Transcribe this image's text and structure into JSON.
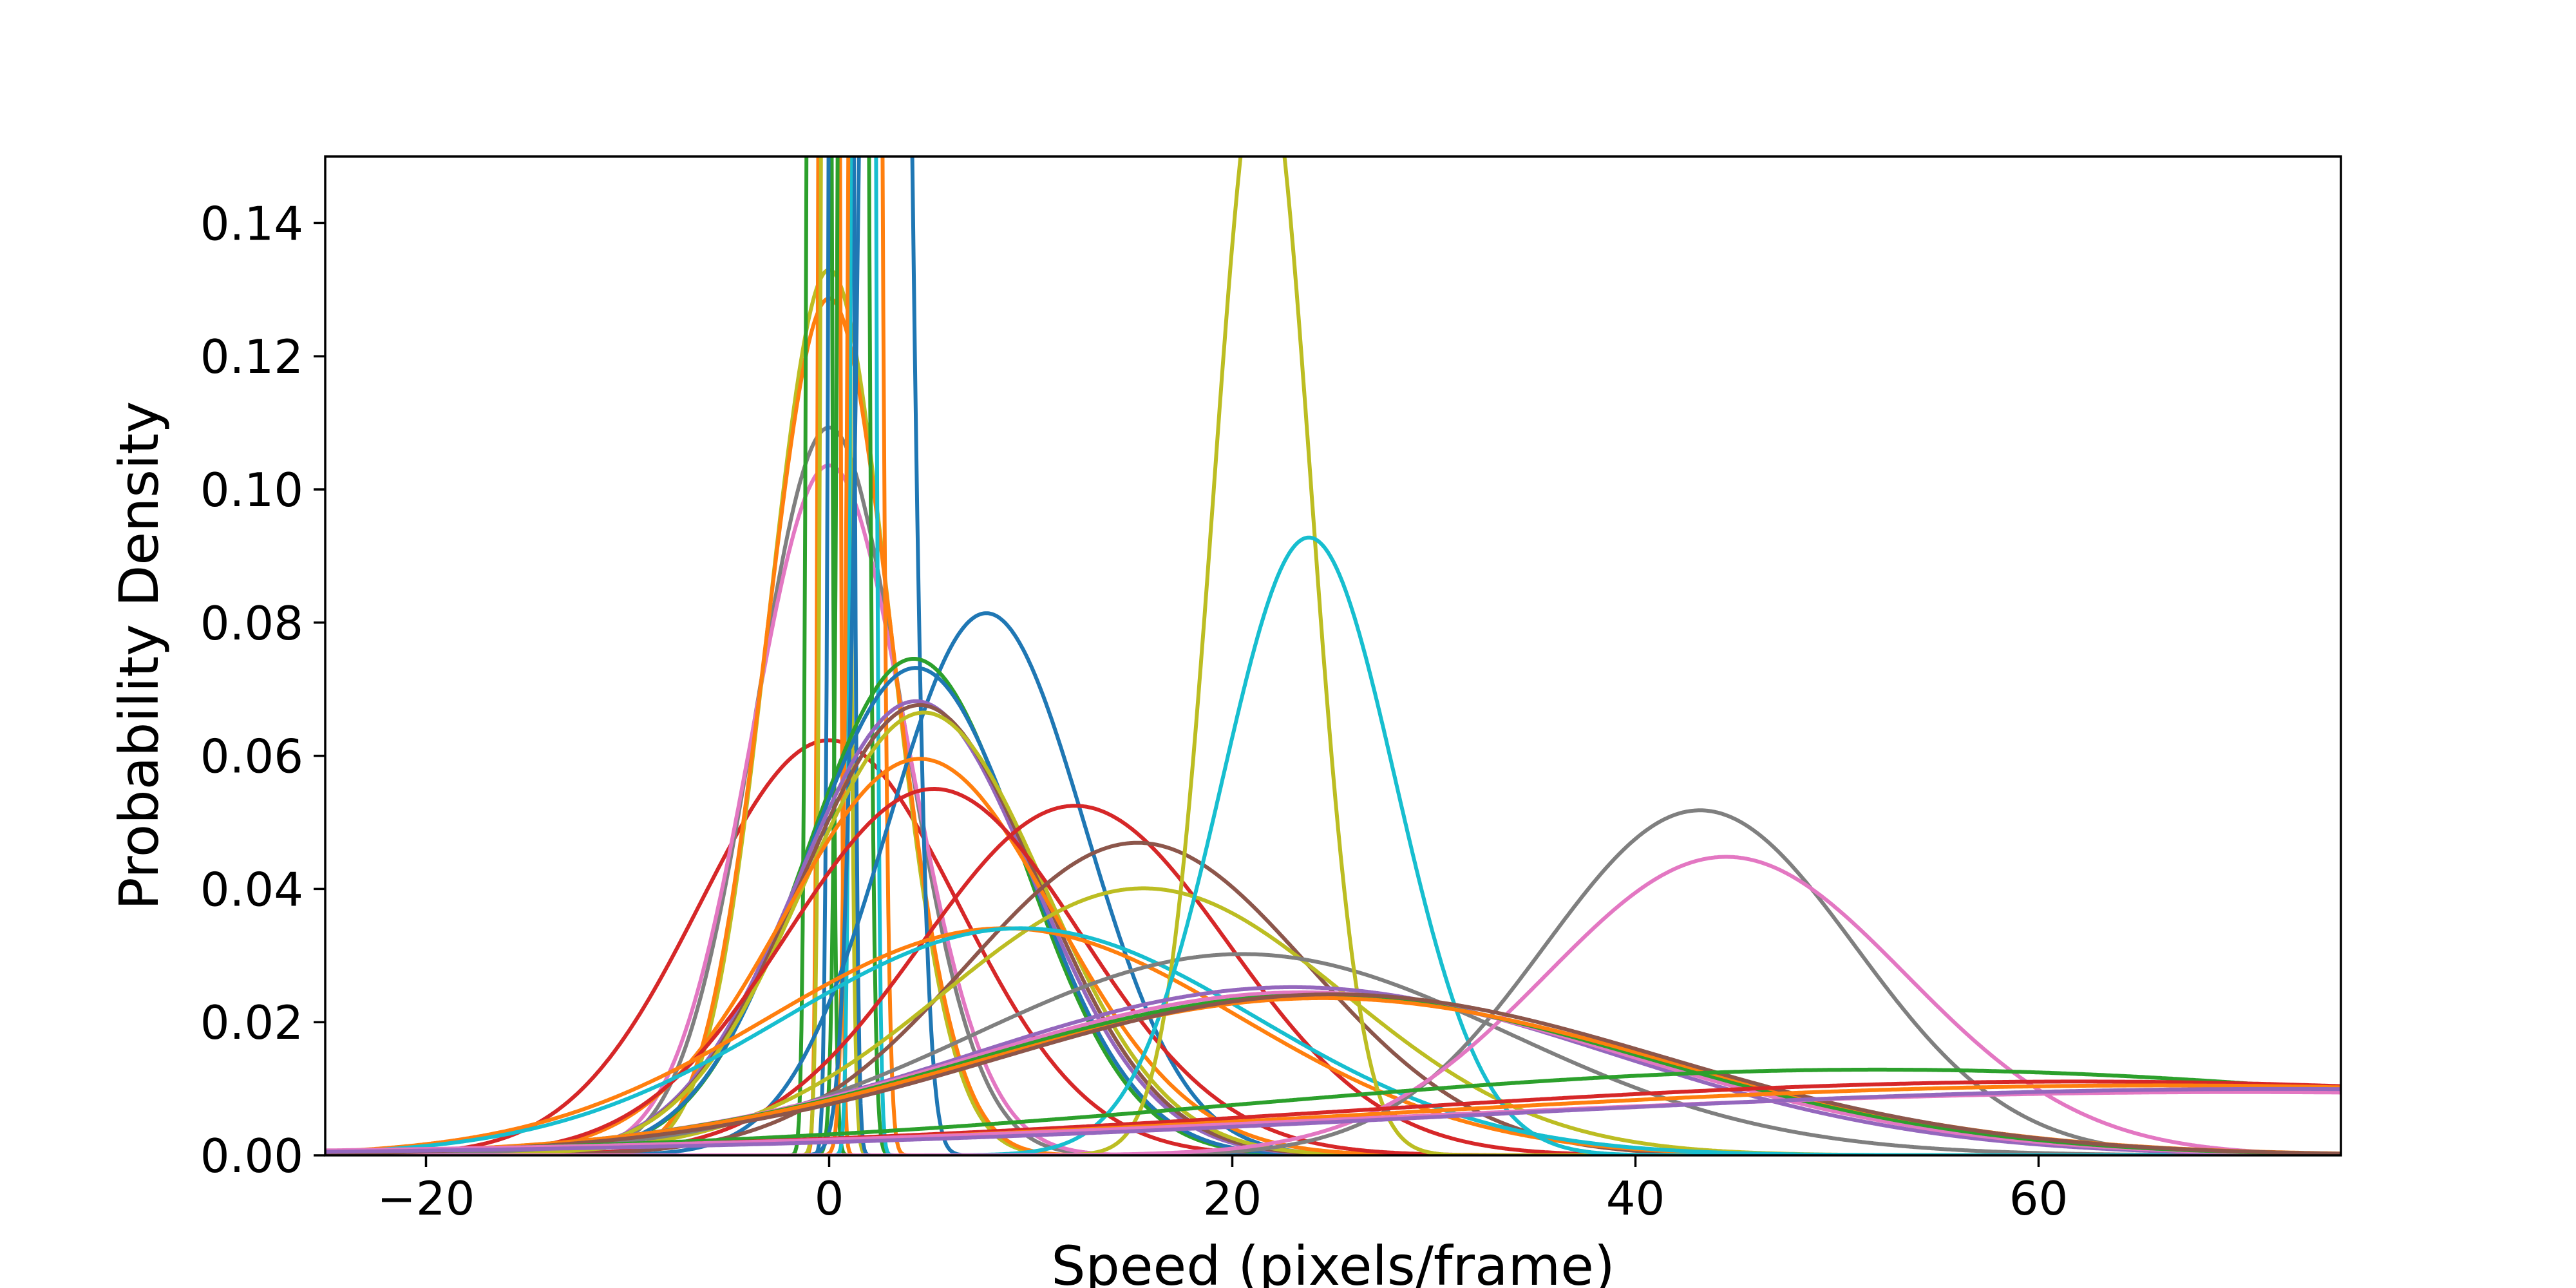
{
  "chart_data": {
    "type": "line",
    "title": "",
    "xlabel": "Speed (pixels/frame)",
    "ylabel": "Probability Density",
    "xlim": [
      -25,
      75
    ],
    "ylim": [
      0,
      0.15
    ],
    "xticks": [
      -20,
      0,
      20,
      40,
      60
    ],
    "yticks": [
      0.0,
      0.02,
      0.04,
      0.06,
      0.08,
      0.1,
      0.12,
      0.14
    ],
    "xtick_labels": [
      "−20",
      "0",
      "20",
      "40",
      "60"
    ],
    "ytick_labels": [
      "0.00",
      "0.02",
      "0.04",
      "0.06",
      "0.08",
      "0.10",
      "0.12",
      "0.14"
    ],
    "grid": false,
    "legend": "none",
    "series": [
      {
        "mean": 0,
        "sd": 6.4,
        "color": "#d62728"
      },
      {
        "mean": 0,
        "sd": 3.65,
        "color": "#7f7f7f"
      },
      {
        "mean": 0,
        "sd": 3.85,
        "color": "#e377c2"
      },
      {
        "mean": 0,
        "sd": 3.0,
        "color": "#bcbd22"
      },
      {
        "mean": 0,
        "sd": 3.1,
        "color": "#ff7f0e"
      },
      {
        "mean": -0.5,
        "sd": 0.3,
        "color": "#2ca02c"
      },
      {
        "mean": 0,
        "sd": 0.25,
        "color": "#ff7f0e"
      },
      {
        "mean": 0.3,
        "sd": 0.35,
        "color": "#bcbd22"
      },
      {
        "mean": 0.6,
        "sd": 0.3,
        "color": "#1f77b4"
      },
      {
        "mean": 1.2,
        "sd": 0.4,
        "color": "#2ca02c"
      },
      {
        "mean": 1.7,
        "sd": 0.3,
        "color": "#17becf"
      },
      {
        "mean": 1.8,
        "sd": 0.45,
        "color": "#ff7f0e"
      },
      {
        "mean": 2.8,
        "sd": 0.9,
        "color": "#1f77b4"
      },
      {
        "mean": 7.8,
        "sd": 4.9,
        "color": "#1f77b4"
      },
      {
        "mean": 4.2,
        "sd": 5.35,
        "color": "#2ca02c"
      },
      {
        "mean": 4.3,
        "sd": 5.45,
        "color": "#1f77b4"
      },
      {
        "mean": 4.3,
        "sd": 5.85,
        "color": "#9467bd"
      },
      {
        "mean": 4.5,
        "sd": 5.9,
        "color": "#8c564b"
      },
      {
        "mean": 4.7,
        "sd": 6.0,
        "color": "#bcbd22"
      },
      {
        "mean": 4.5,
        "sd": 6.7,
        "color": "#ff7f0e"
      },
      {
        "mean": 5.2,
        "sd": 7.25,
        "color": "#d62728"
      },
      {
        "mean": 12.2,
        "sd": 7.6,
        "color": "#d62728"
      },
      {
        "mean": 15.3,
        "sd": 8.5,
        "color": "#8c564b"
      },
      {
        "mean": 15.6,
        "sd": 9.95,
        "color": "#bcbd22"
      },
      {
        "mean": 8.7,
        "sd": 11.7,
        "color": "#ff7f0e"
      },
      {
        "mean": 9.5,
        "sd": 11.7,
        "color": "#17becf"
      },
      {
        "mean": 20.5,
        "sd": 13.2,
        "color": "#7f7f7f"
      },
      {
        "mean": 21.5,
        "sd": 2.4,
        "color": "#bcbd22"
      },
      {
        "mean": 23.8,
        "sd": 4.3,
        "color": "#17becf"
      },
      {
        "mean": 43.2,
        "sd": 7.7,
        "color": "#7f7f7f"
      },
      {
        "mean": 44.5,
        "sd": 8.9,
        "color": "#e377c2"
      },
      {
        "mean": 23.0,
        "sd": 15.8,
        "color": "#9467bd"
      },
      {
        "mean": 23.5,
        "sd": 16.3,
        "color": "#e377c2"
      },
      {
        "mean": 24.0,
        "sd": 16.6,
        "color": "#2ca02c"
      },
      {
        "mean": 24.5,
        "sd": 16.9,
        "color": "#ff7f0e"
      },
      {
        "mean": 25.0,
        "sd": 16.5,
        "color": "#8c564b"
      },
      {
        "mean": 52.0,
        "sd": 31.0,
        "color": "#2ca02c"
      },
      {
        "mean": 62.0,
        "sd": 36.0,
        "color": "#d62728"
      },
      {
        "mean": 66.0,
        "sd": 38.0,
        "color": "#ff7f0e"
      },
      {
        "mean": 70.0,
        "sd": 42.0,
        "color": "#e377c2"
      },
      {
        "mean": 72.0,
        "sd": 40.0,
        "color": "#9467bd"
      }
    ]
  }
}
